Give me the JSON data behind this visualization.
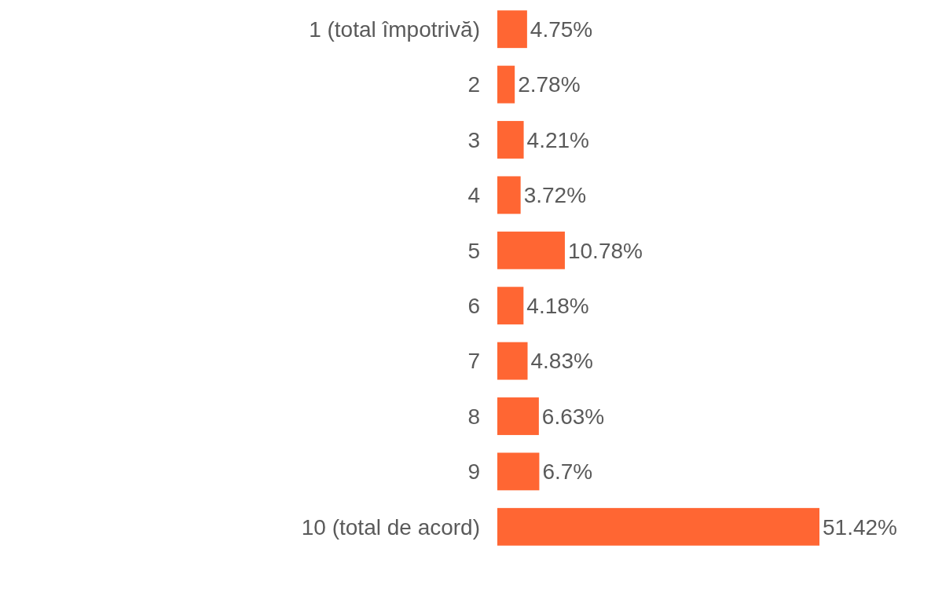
{
  "chart_data": {
    "type": "bar",
    "orientation": "horizontal",
    "color": "#ff6633",
    "categories": [
      "1 (total împotrivă)",
      "2",
      "3",
      "4",
      "5",
      "6",
      "7",
      "8",
      "9",
      "10 (total de acord)"
    ],
    "values": [
      4.75,
      2.78,
      4.21,
      3.72,
      10.78,
      4.18,
      4.83,
      6.63,
      6.7,
      51.42
    ],
    "value_labels": [
      "4.75%",
      "2.78%",
      "4.21%",
      "3.72%",
      "10.78%",
      "4.18%",
      "4.83%",
      "6.63%",
      "6.7%",
      "51.42%"
    ]
  }
}
